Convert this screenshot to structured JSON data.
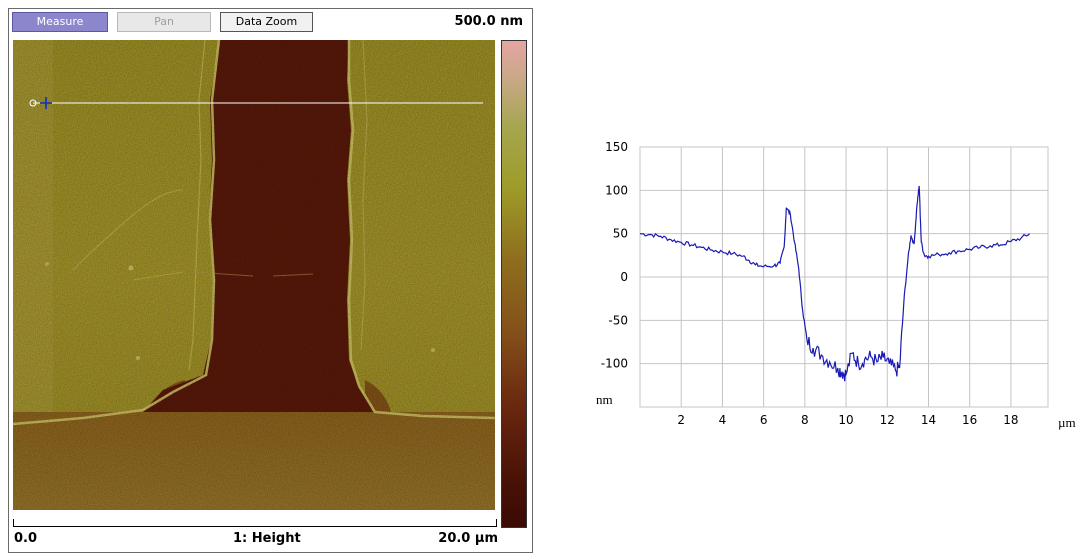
{
  "toolbar": {
    "measure_label": "Measure",
    "pan_label": "Pan",
    "data_zoom_label": "Data Zoom"
  },
  "image_panel": {
    "z_scale_max": "500.0 nm",
    "x_scale_min": "0.0",
    "channel": "1: Height",
    "x_scale_max": "20.0 µm",
    "colors": {
      "substrate": "#a89828",
      "trench": "#5e1a0a",
      "bottom_region": "#9a7428",
      "edge": "#dcd06a",
      "scan_line": "#ffffff",
      "cursor": "#1030c0"
    }
  },
  "chart_data": {
    "type": "line",
    "title": "",
    "xlabel": "µm",
    "ylabel": "nm",
    "xlim": [
      0,
      19.8
    ],
    "ylim": [
      -150,
      150
    ],
    "xticks": [
      2,
      4,
      6,
      8,
      10,
      12,
      14,
      16,
      18
    ],
    "yticks": [
      150,
      100,
      50,
      0,
      -50,
      -100
    ],
    "grid": true,
    "line_color": "#1a1ab4",
    "x": [
      0,
      0.5,
      1,
      1.5,
      2,
      2.5,
      3,
      3.5,
      4,
      4.5,
      5,
      5.3,
      5.6,
      6,
      6.5,
      6.8,
      7,
      7.1,
      7.3,
      7.5,
      7.7,
      7.9,
      8.1,
      8.4,
      8.8,
      9.2,
      9.6,
      9.8,
      10,
      10.3,
      10.6,
      10.9,
      11.2,
      11.5,
      11.8,
      12.1,
      12.4,
      12.6,
      12.8,
      13,
      13.15,
      13.3,
      13.45,
      13.55,
      13.65,
      13.8,
      14,
      14.5,
      15,
      15.5,
      16,
      16.5,
      17,
      17.5,
      18,
      18.5,
      18.9
    ],
    "y": [
      50,
      49,
      47,
      43,
      40,
      37,
      34,
      31,
      29,
      27,
      24,
      19,
      14,
      12,
      13,
      16,
      35,
      80,
      72,
      40,
      10,
      -40,
      -72,
      -82,
      -90,
      -98,
      -105,
      -110,
      -112,
      -88,
      -100,
      -95,
      -92,
      -98,
      -93,
      -100,
      -108,
      -105,
      -30,
      20,
      48,
      38,
      85,
      105,
      40,
      25,
      24,
      26,
      28,
      30,
      32,
      34,
      36,
      37,
      41,
      45,
      50
    ]
  }
}
